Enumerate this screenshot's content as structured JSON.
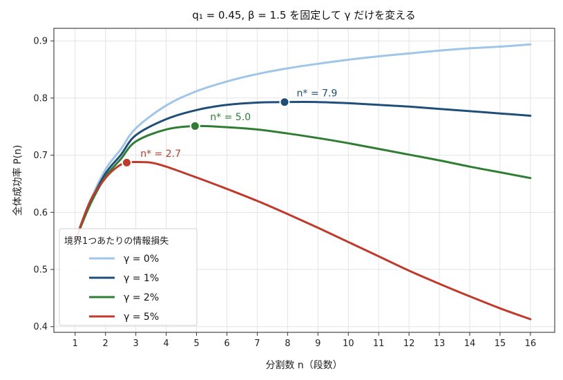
{
  "chart_data": {
    "type": "line",
    "title": "q₁ = 0.45, β = 1.5 を固定して γ だけを変える",
    "xlabel": "分割数 n（段数）",
    "ylabel": "全体成功率 P(n)",
    "xlim": [
      0.3,
      16.8
    ],
    "ylim": [
      0.39,
      0.922
    ],
    "xticks": [
      1,
      2,
      3,
      4,
      5,
      6,
      7,
      8,
      9,
      10,
      11,
      12,
      13,
      14,
      15,
      16
    ],
    "xtick_labels": [
      "1",
      "2",
      "3",
      "4",
      "5",
      "6",
      "7",
      "8",
      "9",
      "10",
      "11",
      "12",
      "13",
      "14",
      "15",
      "16"
    ],
    "yticks": [
      0.4,
      0.5,
      0.6,
      0.7,
      0.8,
      0.9
    ],
    "ytick_labels": [
      "0.4",
      "0.5",
      "0.6",
      "0.7",
      "0.8",
      "0.9"
    ],
    "grid": true,
    "legend": {
      "title": "境界1つあたりの情報損失",
      "placement": "lower-left"
    },
    "series": [
      {
        "name": "γ = 0%",
        "color": "#9fc5e8",
        "points": [
          [
            1,
            0.55
          ],
          [
            1.5,
            0.62
          ],
          [
            2,
            0.675
          ],
          [
            2.5,
            0.71
          ],
          [
            3,
            0.747
          ],
          [
            4,
            0.787
          ],
          [
            5,
            0.812
          ],
          [
            6,
            0.829
          ],
          [
            7,
            0.842
          ],
          [
            8,
            0.852
          ],
          [
            9,
            0.86
          ],
          [
            10,
            0.867
          ],
          [
            11,
            0.873
          ],
          [
            12,
            0.878
          ],
          [
            13,
            0.883
          ],
          [
            14,
            0.887
          ],
          [
            15,
            0.89
          ],
          [
            16,
            0.894
          ]
        ]
      },
      {
        "name": "γ = 1%",
        "color": "#1f4e79",
        "points": [
          [
            1,
            0.55
          ],
          [
            1.5,
            0.617
          ],
          [
            2,
            0.668
          ],
          [
            2.5,
            0.7
          ],
          [
            3,
            0.735
          ],
          [
            4,
            0.763
          ],
          [
            5,
            0.779
          ],
          [
            6,
            0.788
          ],
          [
            7,
            0.792
          ],
          [
            7.9,
            0.793
          ],
          [
            9,
            0.793
          ],
          [
            10,
            0.791
          ],
          [
            11,
            0.788
          ],
          [
            12,
            0.785
          ],
          [
            13,
            0.781
          ],
          [
            14,
            0.777
          ],
          [
            15,
            0.773
          ],
          [
            16,
            0.769
          ]
        ]
      },
      {
        "name": "γ = 2%",
        "color": "#2e7d32",
        "points": [
          [
            1,
            0.55
          ],
          [
            1.5,
            0.614
          ],
          [
            2,
            0.662
          ],
          [
            2.5,
            0.693
          ],
          [
            3,
            0.724
          ],
          [
            4,
            0.745
          ],
          [
            5,
            0.751
          ],
          [
            6,
            0.749
          ],
          [
            7,
            0.745
          ],
          [
            8,
            0.738
          ],
          [
            9,
            0.73
          ],
          [
            10,
            0.721
          ],
          [
            11,
            0.711
          ],
          [
            12,
            0.701
          ],
          [
            13,
            0.691
          ],
          [
            14,
            0.68
          ],
          [
            15,
            0.67
          ],
          [
            16,
            0.66
          ]
        ]
      },
      {
        "name": "γ = 5%",
        "color": "#c0392b",
        "points": [
          [
            1,
            0.55
          ],
          [
            1.5,
            0.62
          ],
          [
            2,
            0.66
          ],
          [
            2.4,
            0.68
          ],
          [
            2.7,
            0.687
          ],
          [
            3,
            0.688
          ],
          [
            3.5,
            0.687
          ],
          [
            4,
            0.68
          ],
          [
            5,
            0.661
          ],
          [
            6,
            0.641
          ],
          [
            7,
            0.62
          ],
          [
            8,
            0.597
          ],
          [
            9,
            0.573
          ],
          [
            10,
            0.548
          ],
          [
            11,
            0.523
          ],
          [
            12,
            0.498
          ],
          [
            13,
            0.475
          ],
          [
            14,
            0.453
          ],
          [
            15,
            0.432
          ],
          [
            16,
            0.413
          ]
        ]
      }
    ],
    "annotations": [
      {
        "series": 1,
        "x": 7.9,
        "y": 0.793,
        "label": "n* = 7.9",
        "label_x": 8.3,
        "label_y": 0.803
      },
      {
        "series": 2,
        "x": 4.95,
        "y": 0.751,
        "label": "n* = 5.0",
        "label_x": 5.45,
        "label_y": 0.761
      },
      {
        "series": 3,
        "x": 2.7,
        "y": 0.687,
        "label": "n* = 2.7",
        "label_x": 3.15,
        "label_y": 0.697
      }
    ]
  }
}
